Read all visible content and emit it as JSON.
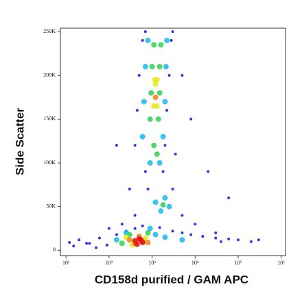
{
  "chart_data": {
    "type": "scatter",
    "x_label": "CD158d purified / GAM APC",
    "y_label": "Side Scatter",
    "xscale": "log",
    "xlim": [
      7.4,
      1260000
    ],
    "ylim": [
      -6000,
      254000
    ],
    "xticks": [
      {
        "value": 10,
        "label": "10¹"
      },
      {
        "value": 100,
        "label": "10²"
      },
      {
        "value": 1000,
        "label": "10³"
      },
      {
        "value": 10000,
        "label": "10⁴"
      },
      {
        "value": 100000,
        "label": "10⁵"
      },
      {
        "value": 1000000,
        "label": "10⁶"
      }
    ],
    "yticks": [
      0,
      {
        "value": 50000,
        "label": "50K"
      },
      {
        "value": 100000,
        "label": "100K"
      },
      {
        "value": 150000,
        "label": "150K"
      },
      {
        "value": 200000,
        "label": "200K"
      },
      {
        "value": 250000,
        "label": "250K"
      }
    ],
    "series": [
      {
        "color": "#1010e0",
        "x": [
          12,
          20,
          35,
          60,
          90,
          150,
          250,
          400,
          600,
          1500,
          3000,
          5000,
          8000,
          15000,
          30000,
          60000,
          100000,
          200000,
          400,
          2000,
          450,
          2200,
          500,
          2500,
          600,
          2800,
          700,
          3000,
          700,
          1800,
          800,
          3000,
          5000,
          10000,
          30000,
          400,
          200,
          15,
          50,
          100,
          3500,
          8000,
          20000,
          5000,
          150,
          60000,
          30,
          300,
          300000,
          40000
        ],
        "values": [
          9000,
          12000,
          8000,
          14000,
          6000,
          18000,
          22000,
          25000,
          28000,
          26000,
          22000,
          20000,
          18000,
          16000,
          14000,
          13000,
          12000,
          10000,
          120000,
          120000,
          160000,
          160000,
          200000,
          200000,
          240000,
          240000,
          250000,
          250000,
          90000,
          90000,
          70000,
          70000,
          40000,
          30000,
          20000,
          40000,
          30000,
          5000,
          3000,
          25000,
          110000,
          150000,
          90000,
          200000,
          120000,
          60000,
          8000,
          70000,
          12000,
          10000
        ]
      },
      {
        "color": "#18b8f0",
        "x": [
          600,
          1800,
          650,
          2000,
          700,
          2100,
          800,
          2200,
          900,
          1500,
          1200,
          2500,
          1600,
          2000,
          150,
          250,
          900,
          1200,
          2000,
          5000
        ],
        "values": [
          130000,
          130000,
          170000,
          170000,
          210000,
          210000,
          240000,
          240000,
          100000,
          100000,
          55000,
          50000,
          45000,
          60000,
          12000,
          20000,
          25000,
          18000,
          15000,
          12000
        ]
      },
      {
        "color": "#30d050",
        "x": [
          900,
          1400,
          950,
          1500,
          1000,
          1500,
          1100,
          1600,
          1800,
          200,
          300,
          800,
          1100,
          1300
        ],
        "values": [
          150000,
          150000,
          180000,
          180000,
          210000,
          210000,
          235000,
          235000,
          52000,
          8000,
          18000,
          20000,
          120000,
          110000
        ]
      },
      {
        "color": "#e8e820",
        "x": [
          1100,
          1300,
          1150,
          1300,
          250,
          700,
          350,
          1200
        ],
        "values": [
          165000,
          165000,
          195000,
          195000,
          15000,
          14000,
          6000,
          190000
        ]
      },
      {
        "color": "#f08010",
        "x": [
          300,
          400,
          600,
          500,
          1200,
          800
        ],
        "values": [
          12000,
          8000,
          10000,
          16000,
          175000,
          9000
        ]
      },
      {
        "color": "#e01010",
        "x": [
          400,
          500,
          600,
          450,
          550
        ],
        "values": [
          11000,
          13000,
          9000,
          7000,
          12000
        ]
      }
    ]
  }
}
